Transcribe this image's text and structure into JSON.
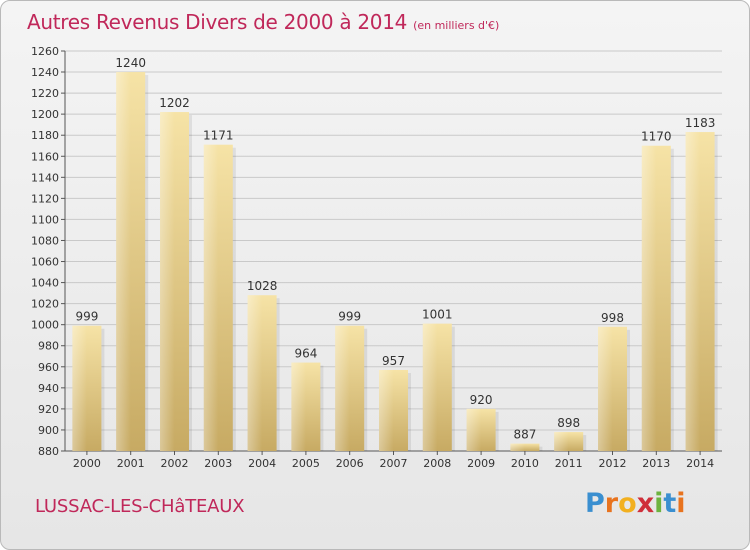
{
  "header": {
    "title": "Autres Revenus Divers de 2000 à 2014",
    "subtitle": "(en milliers d'€)"
  },
  "footer": {
    "place": "LUSSAC-LES-CHâTEAUX",
    "brand_letters": [
      "P",
      "r",
      "o",
      "x",
      "i",
      "t",
      "i"
    ],
    "brand_colors": [
      "#3a8fd0",
      "#e8731e",
      "#f2b01f",
      "#cf2f3a",
      "#6db33f",
      "#3a8fd0",
      "#e8731e"
    ]
  },
  "chart_data": {
    "type": "bar",
    "title": "Autres Revenus Divers de 2000 à 2014",
    "subtitle": "(en milliers d'€)",
    "categories": [
      "2000",
      "2001",
      "2002",
      "2003",
      "2004",
      "2005",
      "2006",
      "2007",
      "2008",
      "2009",
      "2010",
      "2011",
      "2012",
      "2013",
      "2014"
    ],
    "values": [
      999,
      1240,
      1202,
      1171,
      1028,
      964,
      999,
      957,
      1001,
      920,
      887,
      898,
      998,
      1170,
      1183
    ],
    "ylim": [
      880,
      1260
    ],
    "yticks": [
      880,
      900,
      920,
      940,
      960,
      980,
      1000,
      1020,
      1040,
      1060,
      1080,
      1100,
      1120,
      1140,
      1160,
      1180,
      1200,
      1220,
      1240,
      1260
    ],
    "grid": true,
    "bar_color": "#ecd48a",
    "xlabel": "",
    "ylabel": ""
  }
}
